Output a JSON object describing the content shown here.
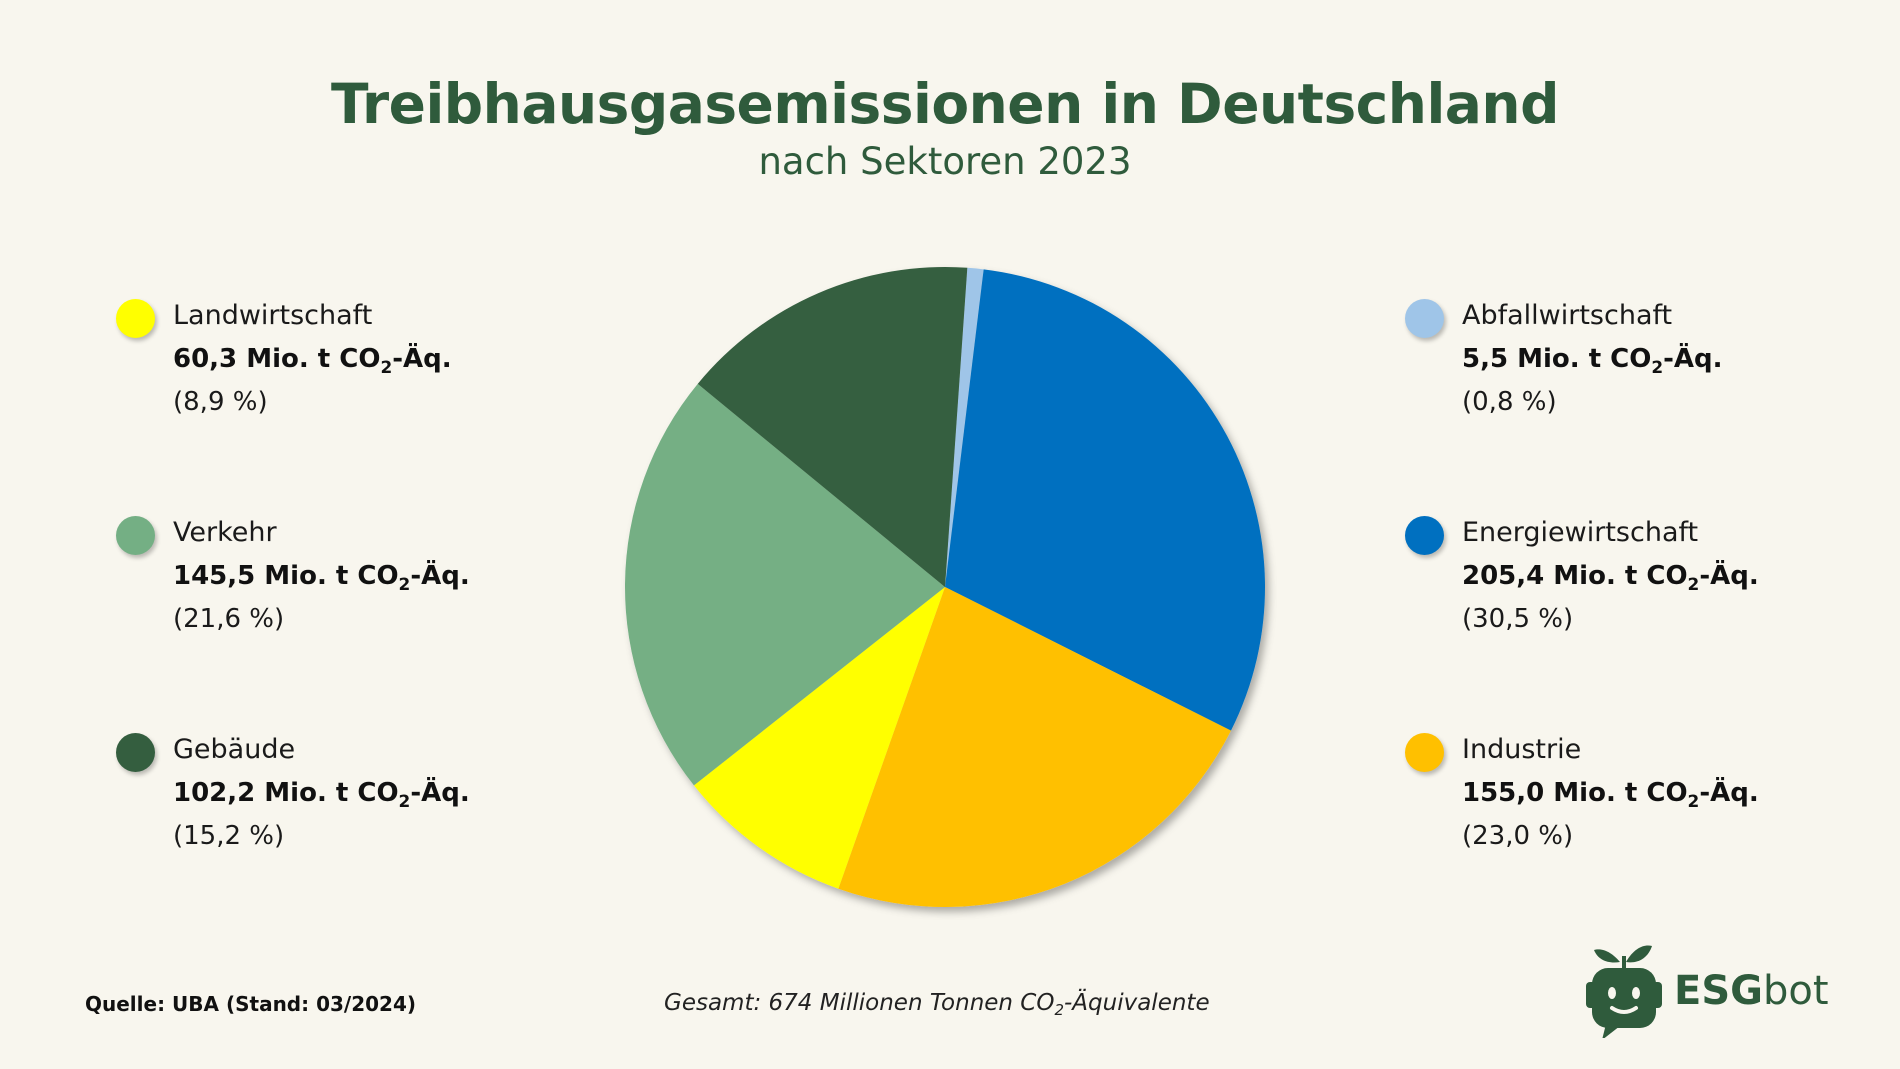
{
  "title": "Treibhausgasemissionen in Deutschland",
  "subtitle": "nach Sektoren 2023",
  "source": "Quelle: UBA (Stand: 03/2024)",
  "total": {
    "prefix": "Gesamt: 674 Millionen Tonnen CO",
    "sub": "2",
    "suffix": "-Äquivalente"
  },
  "unit": {
    "prefix": " Mio. t CO",
    "sub": "2",
    "suffix": "-Äq."
  },
  "logo": {
    "part1": "ESG",
    "part2": "bot"
  },
  "chart_data": {
    "type": "pie",
    "title": "Treibhausgasemissionen in Deutschland",
    "subtitle": "nach Sektoren 2023",
    "start_angle_deg": 4,
    "direction": "clockwise",
    "slices": [
      {
        "name": "Abfallwirtschaft",
        "value": 5.5,
        "value_label": "5,5",
        "percent_label": "(0,8 %)",
        "color": "#9fc5e8"
      },
      {
        "name": "Energiewirtschaft",
        "value": 205.4,
        "value_label": "205,4",
        "percent_label": "(30,5 %)",
        "color": "#0070c0"
      },
      {
        "name": "Industrie",
        "value": 155.0,
        "value_label": "155,0",
        "percent_label": "(23,0 %)",
        "color": "#ffc000"
      },
      {
        "name": "Landwirtschaft",
        "value": 60.3,
        "value_label": "60,3",
        "percent_label": "(8,9 %)",
        "color": "#ffff00"
      },
      {
        "name": "Verkehr",
        "value": 145.5,
        "value_label": "145,5",
        "percent_label": "(21,6 %)",
        "color": "#74af84"
      },
      {
        "name": "Gebäude",
        "value": 102.2,
        "value_label": "102,2",
        "percent_label": "(15,2 %)",
        "color": "#345e3f"
      }
    ],
    "legend_left": [
      "Landwirtschaft",
      "Verkehr",
      "Gebäude"
    ],
    "legend_right": [
      "Abfallwirtschaft",
      "Energiewirtschaft",
      "Industrie"
    ],
    "total_value": 674
  }
}
